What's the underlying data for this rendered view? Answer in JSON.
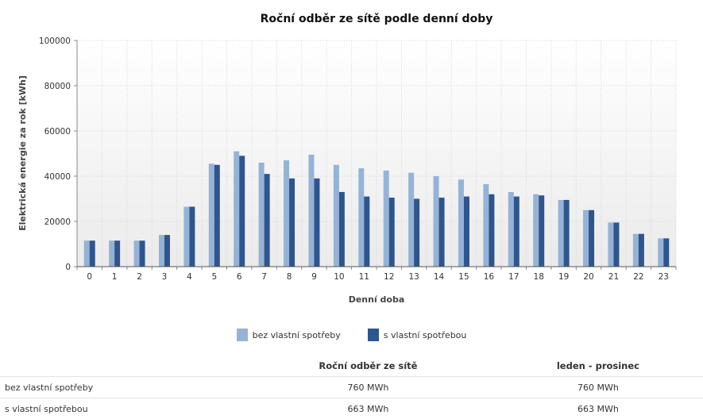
{
  "chart_data": {
    "type": "bar",
    "title": "Roční odběr ze sítě podle denní doby",
    "xlabel": "Denní doba",
    "ylabel": "Elektrická energie za rok [kWh]",
    "ylim": [
      0,
      100000
    ],
    "yticks": [
      "0",
      "20000",
      "40000",
      "60000",
      "80000",
      "100000"
    ],
    "categories": [
      "0",
      "1",
      "2",
      "3",
      "4",
      "5",
      "6",
      "7",
      "8",
      "9",
      "10",
      "11",
      "12",
      "13",
      "14",
      "15",
      "16",
      "17",
      "18",
      "19",
      "20",
      "21",
      "22",
      "23"
    ],
    "series": [
      {
        "name": "bez vlastní spotřeby",
        "color": "#95b3d7",
        "values": [
          11500,
          11500,
          11500,
          14000,
          26500,
          45500,
          51000,
          46000,
          47000,
          49500,
          45000,
          43500,
          42500,
          41500,
          40000,
          38500,
          36500,
          33000,
          32000,
          29500,
          25000,
          19500,
          14500,
          12500
        ]
      },
      {
        "name": "s vlastní spotřebou",
        "color": "#2e558d",
        "values": [
          11500,
          11500,
          11500,
          14000,
          26500,
          45000,
          49000,
          41000,
          39000,
          39000,
          33000,
          31000,
          30500,
          30000,
          30500,
          31000,
          32000,
          31000,
          31500,
          29500,
          25000,
          19500,
          14500,
          12500
        ]
      }
    ],
    "grid": true,
    "legend_position": "bottom-center"
  },
  "summary_table": {
    "headers": [
      "",
      "Roční odběr ze sítě",
      "leden - prosinec"
    ],
    "rows": [
      {
        "label": "bez vlastní spotřeby",
        "annual": "760 MWh",
        "period": "760 MWh"
      },
      {
        "label": "s vlastní spotřebou",
        "annual": "663 MWh",
        "period": "663 MWh"
      }
    ]
  }
}
